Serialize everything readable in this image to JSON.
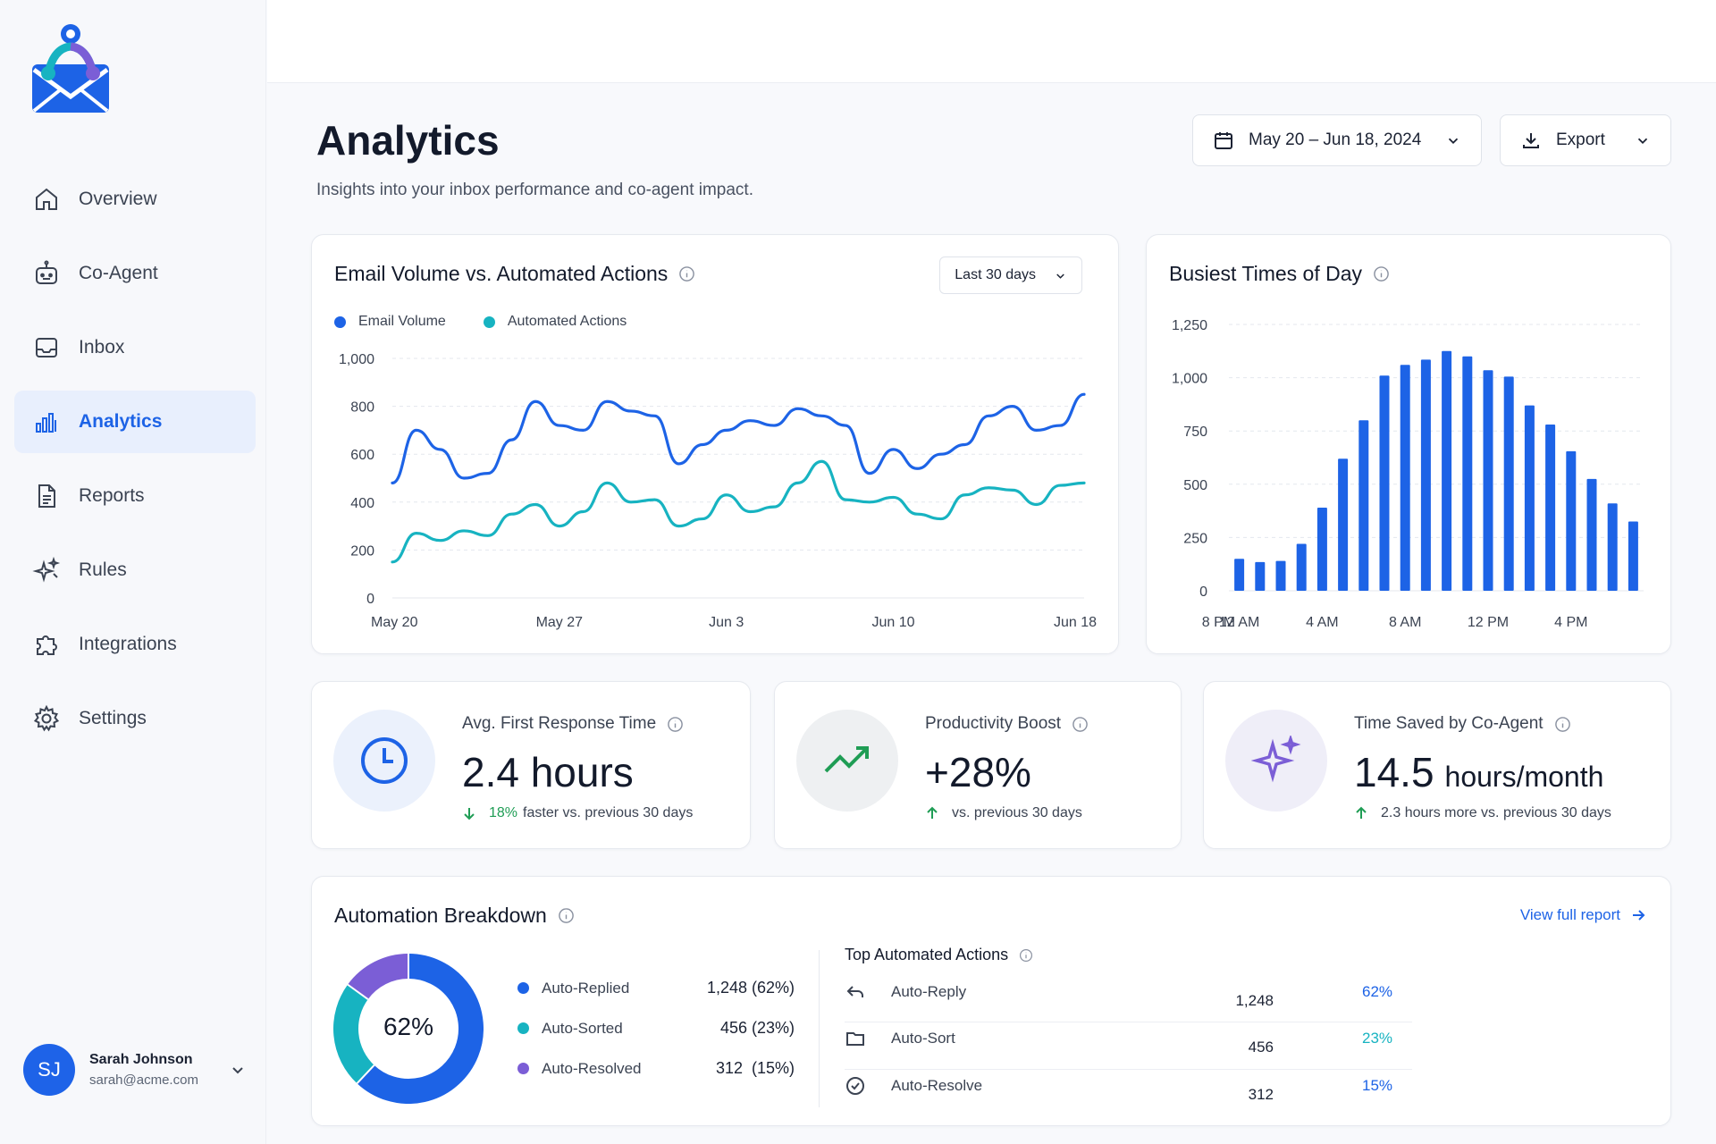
{
  "app": {
    "logo": "envelope-people-logo"
  },
  "sidebar": {
    "items": [
      {
        "label": "Overview",
        "icon": "home-icon"
      },
      {
        "label": "Co-Agent",
        "icon": "robot-icon"
      },
      {
        "label": "Inbox",
        "icon": "inbox-icon"
      },
      {
        "label": "Analytics",
        "icon": "bar-chart-icon",
        "active": true
      },
      {
        "label": "Reports",
        "icon": "document-icon"
      },
      {
        "label": "Rules",
        "icon": "sparkle-rules-icon"
      },
      {
        "label": "Integrations",
        "icon": "puzzle-icon"
      },
      {
        "label": "Settings",
        "icon": "gear-icon"
      }
    ],
    "user": {
      "initials": "SJ",
      "name": "Sarah Johnson",
      "email": "sarah@acme.com"
    }
  },
  "header": {
    "title": "Analytics",
    "subtitle": "Insights into your inbox performance and co-agent impact.",
    "date_range": "May 20 – Jun 18, 2024",
    "export_label": "Export"
  },
  "colors": {
    "accent": "#1d63e6",
    "teal": "#17b3c1",
    "purple": "#7b5ed6",
    "green": "#1f9d55"
  },
  "volume_card": {
    "title": "Email Volume vs. Automated Actions",
    "range": "Last 30 days",
    "legend": [
      "Email Volume",
      "Automated Actions"
    ]
  },
  "busiest_card": {
    "title": "Busiest Times of Day"
  },
  "metrics": [
    {
      "label": "Avg. First Response Time",
      "value": "2.4 hours",
      "note_highlight": "18%",
      "note": "faster vs. previous 30 days",
      "icon": "clock-icon"
    },
    {
      "label": "Productivity Boost",
      "value": "+28%",
      "note_highlight": "",
      "note": "vs. previous 30 days",
      "icon": "trending-up-icon"
    },
    {
      "label": "Time Saved by Co-Agent",
      "value": "14.5",
      "unit": "hours/month",
      "note_highlight": "",
      "note": "2.3 hours more vs. previous 30 days",
      "icon": "sparkle-icon"
    }
  ],
  "breakdown": {
    "title": "Automation Breakdown",
    "center": "62%",
    "view_full": "View full report",
    "items": [
      {
        "label": "Auto-Replied",
        "value": "1,248 (62%)",
        "color": "#1d63e6"
      },
      {
        "label": "Auto-Sorted",
        "value": "456 (23%)",
        "color": "#17b3c1"
      },
      {
        "label": "Auto-Resolved",
        "value": "312  (15%)",
        "color": "#7b5ed6"
      }
    ],
    "top_title": "Top Automated Actions",
    "top_actions": [
      {
        "label": "Auto-Reply",
        "count": "1,248",
        "pct": "62%",
        "icon": "reply-icon",
        "color": "#1d63e6"
      },
      {
        "label": "Auto-Sort",
        "count": "456",
        "pct": "23%",
        "icon": "folder-icon",
        "color": "#17b3c1"
      },
      {
        "label": "Auto-Resolve",
        "count": "312",
        "pct": "15%",
        "icon": "check-circle-icon",
        "color": "#1d63e6"
      }
    ]
  },
  "chart_data": [
    {
      "type": "line",
      "title": "Email Volume vs. Automated Actions",
      "x": [
        "May 20",
        "May 21",
        "May 22",
        "May 23",
        "May 24",
        "May 25",
        "May 26",
        "May 27",
        "May 28",
        "May 29",
        "May 30",
        "May 31",
        "Jun 1",
        "Jun 2",
        "Jun 3",
        "Jun 4",
        "Jun 5",
        "Jun 6",
        "Jun 7",
        "Jun 8",
        "Jun 9",
        "Jun 10",
        "Jun 11",
        "Jun 12",
        "Jun 13",
        "Jun 14",
        "Jun 15",
        "Jun 16",
        "Jun 17",
        "Jun 18"
      ],
      "x_ticks": [
        "May 20",
        "May 27",
        "Jun 3",
        "Jun 10",
        "Jun 18"
      ],
      "series": [
        {
          "name": "Email Volume",
          "values": [
            480,
            700,
            620,
            500,
            520,
            660,
            820,
            720,
            700,
            820,
            780,
            760,
            560,
            640,
            700,
            740,
            720,
            790,
            760,
            720,
            520,
            620,
            540,
            600,
            640,
            760,
            800,
            700,
            720,
            850
          ],
          "color": "#1d63e6"
        },
        {
          "name": "Automated Actions",
          "values": [
            150,
            270,
            240,
            280,
            260,
            350,
            390,
            300,
            360,
            480,
            400,
            410,
            300,
            330,
            430,
            360,
            380,
            480,
            570,
            410,
            400,
            420,
            350,
            330,
            430,
            460,
            450,
            390,
            470,
            480
          ],
          "color": "#17b3c1"
        }
      ],
      "ylim": [
        0,
        1000
      ],
      "y_ticks": [
        "0",
        "200",
        "400",
        "600",
        "800",
        "1,000"
      ],
      "grid": true,
      "legend": "top-left"
    },
    {
      "type": "bar",
      "title": "Busiest Times of Day",
      "categories": [
        "12 AM",
        "1 AM",
        "2 AM",
        "3 AM",
        "4 AM",
        "5 AM",
        "6 AM",
        "7 AM",
        "8 AM",
        "9 AM",
        "10 AM",
        "11 AM",
        "12 PM",
        "1 PM",
        "2 PM",
        "3 PM",
        "4 PM",
        "5 PM",
        "6 PM",
        "7 PM"
      ],
      "x_ticks": [
        "12 AM",
        "4 AM",
        "8 AM",
        "12 PM",
        "4 PM",
        "8 PM"
      ],
      "values": [
        150,
        135,
        140,
        220,
        390,
        620,
        800,
        1010,
        1060,
        1085,
        1125,
        1100,
        1035,
        1005,
        870,
        780,
        655,
        525,
        410,
        325
      ],
      "ylim": [
        0,
        1250
      ],
      "y_ticks": [
        "0",
        "250",
        "500",
        "750",
        "1,000",
        "1,250"
      ],
      "color": "#1d63e6",
      "grid": true
    }
  ]
}
